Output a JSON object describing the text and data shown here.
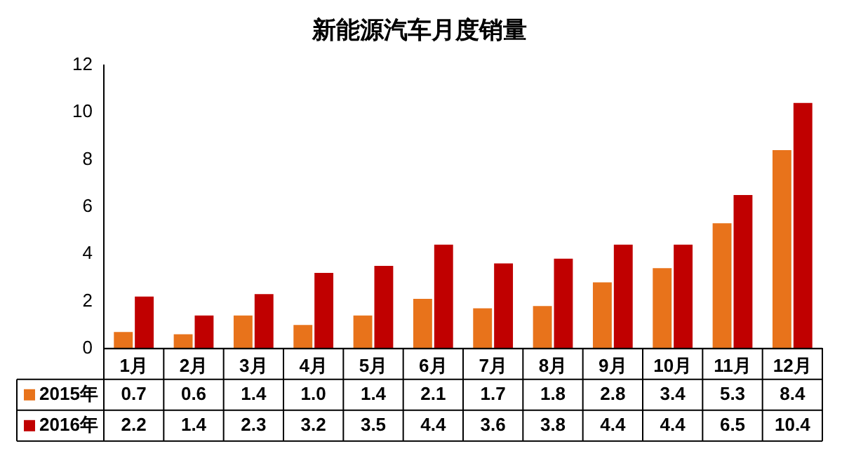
{
  "chart_data": {
    "type": "bar",
    "title": "新能源汽车月度销量",
    "categories": [
      "1月",
      "2月",
      "3月",
      "4月",
      "5月",
      "6月",
      "7月",
      "8月",
      "9月",
      "10月",
      "11月",
      "12月"
    ],
    "series": [
      {
        "name": "2015年",
        "color": "#e8731b",
        "values": [
          0.7,
          0.6,
          1.4,
          1.0,
          1.4,
          2.1,
          1.7,
          1.8,
          2.8,
          3.4,
          5.3,
          8.4
        ],
        "value_labels": [
          "0.7",
          "0.6",
          "1.4",
          "1.0",
          "1.4",
          "2.1",
          "1.7",
          "1.8",
          "2.8",
          "3.4",
          "5.3",
          "8.4"
        ]
      },
      {
        "name": "2016年",
        "color": "#c00000",
        "values": [
          2.2,
          1.4,
          2.3,
          3.2,
          3.5,
          4.4,
          3.6,
          3.8,
          4.4,
          4.4,
          6.5,
          10.4
        ],
        "value_labels": [
          "2.2",
          "1.4",
          "2.3",
          "3.2",
          "3.5",
          "4.4",
          "3.6",
          "3.8",
          "4.4",
          "4.4",
          "6.5",
          "10.4"
        ]
      }
    ],
    "ylim": [
      0,
      12
    ],
    "yticks": [
      0,
      2,
      4,
      6,
      8,
      10,
      12
    ],
    "grid": false,
    "legend": "bottom"
  }
}
